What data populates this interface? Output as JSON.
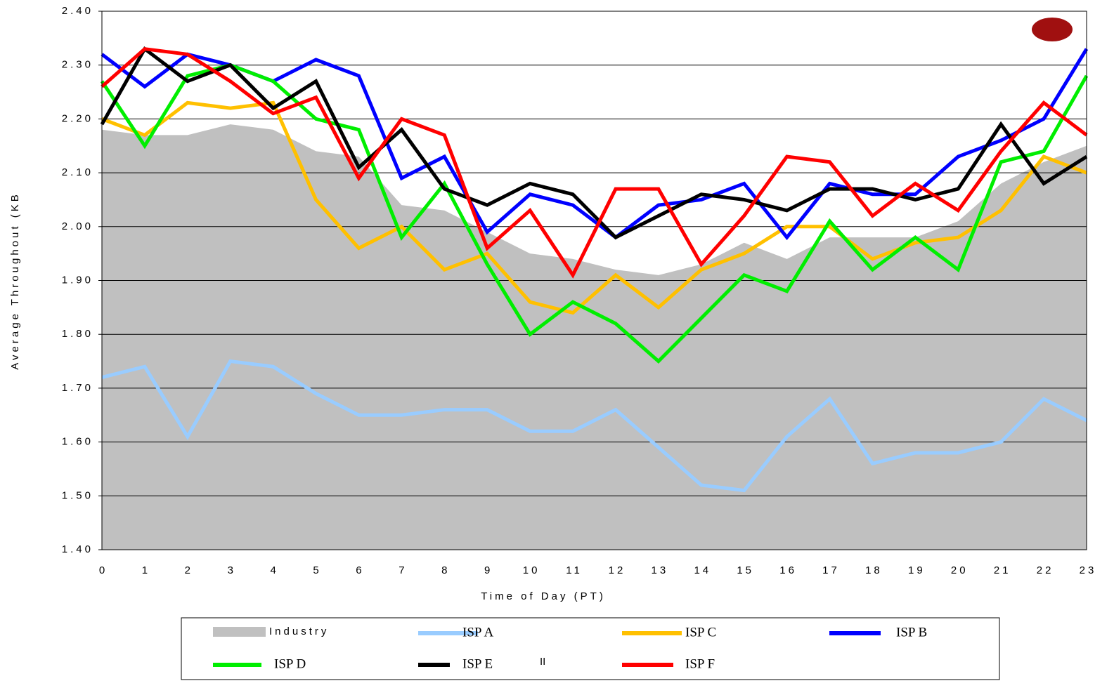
{
  "chart_data": {
    "type": "line",
    "ylabel": "Average Throughout (KB",
    "xlabel": "Time of Day (PT)",
    "categories": [
      "0",
      "1",
      "2",
      "3",
      "4",
      "5",
      "6",
      "7",
      "8",
      "9",
      "10",
      "11",
      "12",
      "13",
      "14",
      "15",
      "16",
      "17",
      "18",
      "19",
      "20",
      "21",
      "22",
      "23"
    ],
    "ylim": [
      1.4,
      2.4
    ],
    "yticks": [
      {
        "value": 1.4,
        "label": "1.40"
      },
      {
        "value": 1.5,
        "label": "1.50"
      },
      {
        "value": 1.6,
        "label": "1.60"
      },
      {
        "value": 1.7,
        "label": "1.70"
      },
      {
        "value": 1.8,
        "label": "1.80"
      },
      {
        "value": 1.9,
        "label": "1.90"
      },
      {
        "value": 2.0,
        "label": "2.00"
      },
      {
        "value": 2.1,
        "label": "2.10"
      },
      {
        "value": 2.2,
        "label": "2.20"
      },
      {
        "value": 2.3,
        "label": "2.30"
      },
      {
        "value": 2.4,
        "label": "2.40"
      }
    ],
    "grid": true,
    "annotation": "II",
    "series": [
      {
        "name": "Industry",
        "color": "#c0c0c0",
        "area": true,
        "values": [
          2.18,
          2.17,
          2.17,
          2.19,
          2.18,
          2.14,
          2.13,
          2.04,
          2.03,
          1.99,
          1.95,
          1.94,
          1.92,
          1.91,
          1.93,
          1.97,
          1.94,
          1.98,
          1.98,
          1.98,
          2.01,
          2.08,
          2.12,
          2.15
        ]
      },
      {
        "name": "ISP A",
        "color": "#99ccff",
        "values": [
          1.72,
          1.74,
          1.61,
          1.75,
          1.74,
          1.69,
          1.65,
          1.65,
          1.66,
          1.66,
          1.62,
          1.62,
          1.66,
          1.59,
          1.52,
          1.51,
          1.61,
          1.68,
          1.56,
          1.58,
          1.58,
          1.6,
          1.68,
          1.64
        ]
      },
      {
        "name": "ISP C",
        "color": "#ffc000",
        "values": [
          2.2,
          2.17,
          2.23,
          2.22,
          2.23,
          2.05,
          1.96,
          2.0,
          1.92,
          1.95,
          1.86,
          1.84,
          1.91,
          1.85,
          1.92,
          1.95,
          2.0,
          2.0,
          1.94,
          1.97,
          1.98,
          2.03,
          2.13,
          2.1
        ]
      },
      {
        "name": "ISP B",
        "color": "#0000ff",
        "values": [
          2.32,
          2.26,
          2.32,
          2.3,
          2.27,
          2.31,
          2.28,
          2.09,
          2.13,
          1.99,
          2.06,
          2.04,
          1.98,
          2.04,
          2.05,
          2.08,
          1.98,
          2.08,
          2.06,
          2.06,
          2.13,
          2.16,
          2.2,
          2.33
        ]
      },
      {
        "name": "ISP D",
        "color": "#00ee00",
        "values": [
          2.27,
          2.15,
          2.28,
          2.3,
          2.27,
          2.2,
          2.18,
          1.98,
          2.08,
          1.93,
          1.8,
          1.86,
          1.82,
          1.75,
          1.83,
          1.91,
          1.88,
          2.01,
          1.92,
          1.98,
          1.92,
          2.12,
          2.14,
          2.28
        ]
      },
      {
        "name": "ISP E",
        "color": "#000000",
        "values": [
          2.19,
          2.33,
          2.27,
          2.3,
          2.22,
          2.27,
          2.11,
          2.18,
          2.07,
          2.04,
          2.08,
          2.06,
          1.98,
          2.02,
          2.06,
          2.05,
          2.03,
          2.07,
          2.07,
          2.05,
          2.07,
          2.19,
          2.08,
          2.13
        ]
      },
      {
        "name": "ISP F",
        "color": "#ff0000",
        "values": [
          2.26,
          2.33,
          2.32,
          2.27,
          2.21,
          2.24,
          2.09,
          2.2,
          2.17,
          1.96,
          2.03,
          1.91,
          2.07,
          2.07,
          1.93,
          2.02,
          2.13,
          2.12,
          2.02,
          2.08,
          2.03,
          2.14,
          2.23,
          2.17
        ]
      }
    ]
  }
}
